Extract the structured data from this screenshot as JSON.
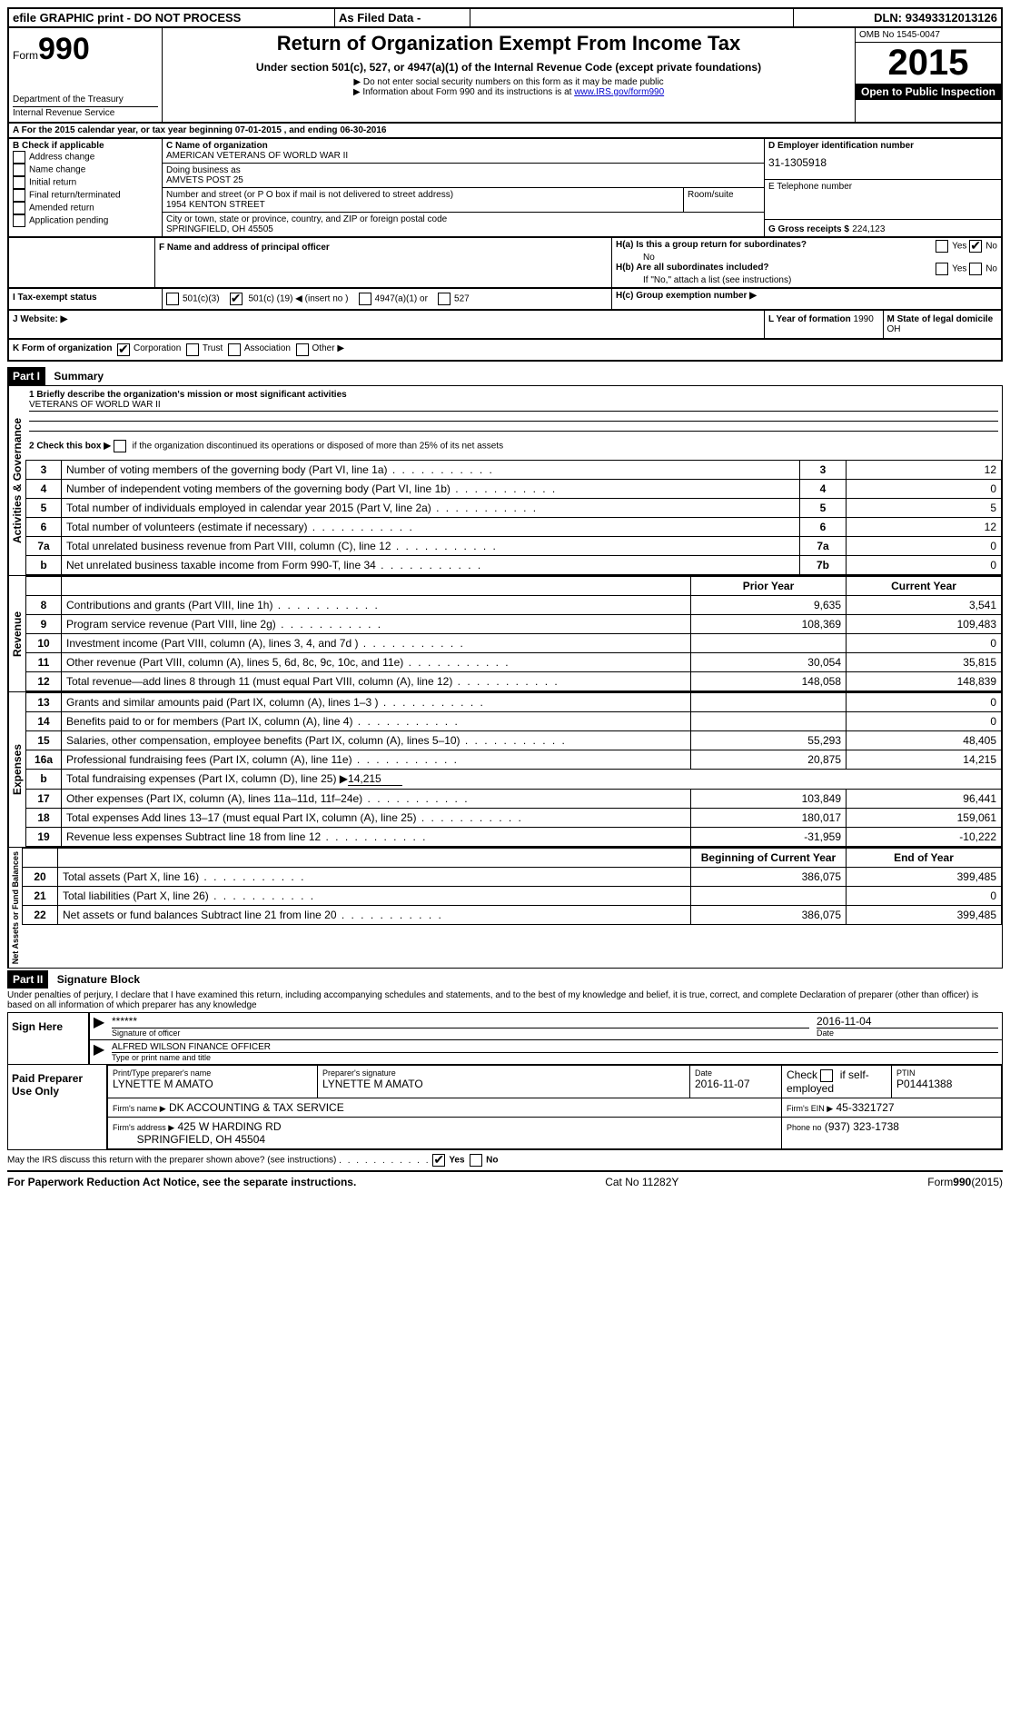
{
  "header_bar": {
    "efile": "efile GRAPHIC print - DO NOT PROCESS",
    "asfiled": "As Filed Data -",
    "dln_label": "DLN:",
    "dln": "93493312013126"
  },
  "top": {
    "form_prefix": "Form",
    "form_no": "990",
    "dept": "Department of the Treasury",
    "irs": "Internal Revenue Service",
    "title": "Return of Organization Exempt From Income Tax",
    "subtitle": "Under section 501(c), 527, or 4947(a)(1) of the Internal Revenue Code (except private foundations)",
    "note1": "▶ Do not enter social security numbers on this form as it may be made public",
    "note2_pre": "▶ Information about Form 990 and its instructions is at ",
    "note2_link": "www.IRS.gov/form990",
    "omb": "OMB No 1545-0047",
    "year": "2015",
    "open": "Open to Public Inspection"
  },
  "lineA": {
    "label": "A  For the 2015 calendar year, or tax year beginning 07-01-2015",
    "mid": ", and ending 06-30-2016"
  },
  "boxB": {
    "title": "B Check if applicable",
    "items": [
      "Address change",
      "Name change",
      "Initial return",
      "Final return/terminated",
      "Amended return",
      "Application pending"
    ]
  },
  "boxC": {
    "name_label": "C Name of organization",
    "name": "AMERICAN VETERANS OF WORLD WAR II",
    "dba_label": "Doing business as",
    "dba": "AMVETS POST 25",
    "street_label": "Number and street (or P O box if mail is not delivered to street address)",
    "room_label": "Room/suite",
    "street": "1954 KENTON STREET",
    "city_label": "City or town, state or province, country, and ZIP or foreign postal code",
    "city": "SPRINGFIELD, OH  45505"
  },
  "boxD": {
    "label": "D Employer identification number",
    "value": "31-1305918"
  },
  "boxE": {
    "label": "E Telephone number",
    "value": ""
  },
  "boxG": {
    "label": "G Gross receipts $",
    "value": "224,123"
  },
  "boxF": {
    "label": "F  Name and address of principal officer"
  },
  "boxH": {
    "ha_label": "H(a)  Is this a group return for subordinates?",
    "ha_no": "No",
    "yes": "Yes",
    "no": "No",
    "hb_label": "H(b)  Are all subordinates included?",
    "hb_note": "If \"No,\" attach a list  (see instructions)",
    "hc_label": "H(c)  Group exemption number ▶"
  },
  "boxI": {
    "label": "I  Tax-exempt status",
    "opt1": "501(c)(3)",
    "opt2_pre": "501(c) (",
    "opt2_num": "19",
    "opt2_post": ") ◀ (insert no )",
    "opt3": "4947(a)(1) or",
    "opt4": "527"
  },
  "boxJ": {
    "label": "J  Website: ▶"
  },
  "boxK": {
    "label": "K Form of organization",
    "opts": [
      "Corporation",
      "Trust",
      "Association",
      "Other ▶"
    ]
  },
  "boxL": {
    "label": "L Year of formation",
    "value": "1990"
  },
  "boxM": {
    "label": "M State of legal domicile",
    "value": "OH"
  },
  "part1": {
    "header": "Part I",
    "title": "Summary",
    "q1_label": "1 Briefly describe the organization's mission or most significant activities",
    "q1_value": "VETERANS OF WORLD WAR II",
    "q2": "2  Check this box ▶",
    "q2_post": "if the organization discontinued its operations or disposed of more than 25% of its net assets",
    "rows_simple": [
      {
        "n": "3",
        "label": "Number of voting members of the governing body (Part VI, line 1a)",
        "box": "3",
        "val": "12"
      },
      {
        "n": "4",
        "label": "Number of independent voting members of the governing body (Part VI, line 1b)",
        "box": "4",
        "val": "0"
      },
      {
        "n": "5",
        "label": "Total number of individuals employed in calendar year 2015 (Part V, line 2a)",
        "box": "5",
        "val": "5"
      },
      {
        "n": "6",
        "label": "Total number of volunteers (estimate if necessary)",
        "box": "6",
        "val": "12"
      },
      {
        "n": "7a",
        "label": "Total unrelated business revenue from Part VIII, column (C), line 12",
        "box": "7a",
        "val": "0"
      },
      {
        "n": "b",
        "label": "Net unrelated business taxable income from Form 990-T, line 34",
        "box": "7b",
        "val": "0"
      }
    ],
    "col_prior": "Prior Year",
    "col_current": "Current Year",
    "revenue_rows": [
      {
        "n": "8",
        "label": "Contributions and grants (Part VIII, line 1h)",
        "p": "9,635",
        "c": "3,541"
      },
      {
        "n": "9",
        "label": "Program service revenue (Part VIII, line 2g)",
        "p": "108,369",
        "c": "109,483"
      },
      {
        "n": "10",
        "label": "Investment income (Part VIII, column (A), lines 3, 4, and 7d )",
        "p": "",
        "c": "0"
      },
      {
        "n": "11",
        "label": "Other revenue (Part VIII, column (A), lines 5, 6d, 8c, 9c, 10c, and 11e)",
        "p": "30,054",
        "c": "35,815"
      },
      {
        "n": "12",
        "label": "Total revenue—add lines 8 through 11 (must equal Part VIII, column (A), line 12)",
        "p": "148,058",
        "c": "148,839"
      }
    ],
    "expense_rows": [
      {
        "n": "13",
        "label": "Grants and similar amounts paid (Part IX, column (A), lines 1–3 )",
        "p": "",
        "c": "0"
      },
      {
        "n": "14",
        "label": "Benefits paid to or for members (Part IX, column (A), line 4)",
        "p": "",
        "c": "0"
      },
      {
        "n": "15",
        "label": "Salaries, other compensation, employee benefits (Part IX, column (A), lines 5–10)",
        "p": "55,293",
        "c": "48,405"
      },
      {
        "n": "16a",
        "label": "Professional fundraising fees (Part IX, column (A), line 11e)",
        "p": "20,875",
        "c": "14,215"
      }
    ],
    "line_b": {
      "n": "b",
      "label": "Total fundraising expenses (Part IX, column (D), line 25) ▶",
      "val": "14,215"
    },
    "expense_rows2": [
      {
        "n": "17",
        "label": "Other expenses (Part IX, column (A), lines 11a–11d, 11f–24e)",
        "p": "103,849",
        "c": "96,441"
      },
      {
        "n": "18",
        "label": "Total expenses  Add lines 13–17 (must equal Part IX, column (A), line 25)",
        "p": "180,017",
        "c": "159,061"
      },
      {
        "n": "19",
        "label": "Revenue less expenses  Subtract line 18 from line 12",
        "p": "-31,959",
        "c": "-10,222"
      }
    ],
    "col_begin": "Beginning of Current Year",
    "col_end": "End of Year",
    "net_rows": [
      {
        "n": "20",
        "label": "Total assets (Part X, line 16)",
        "p": "386,075",
        "c": "399,485"
      },
      {
        "n": "21",
        "label": "Total liabilities (Part X, line 26)",
        "p": "",
        "c": "0"
      },
      {
        "n": "22",
        "label": "Net assets or fund balances  Subtract line 21 from line 20",
        "p": "386,075",
        "c": "399,485"
      }
    ],
    "side_gov": "Activities & Governance",
    "side_rev": "Revenue",
    "side_exp": "Expenses",
    "side_net": "Net Assets or Fund Balances"
  },
  "part2": {
    "header": "Part II",
    "title": "Signature Block",
    "declaration": "Under penalties of perjury, I declare that I have examined this return, including accompanying schedules and statements, and to the best of my knowledge and belief, it is true, correct, and complete  Declaration of preparer (other than officer) is based on all information of which preparer has any knowledge",
    "sign_here": "Sign Here",
    "sig_stars": "******",
    "sig_officer_label": "Signature of officer",
    "sig_date": "2016-11-04",
    "date_label": "Date",
    "officer_name": "ALFRED WILSON FINANCE OFFICER",
    "officer_name_label": "Type or print name and title",
    "paid": "Paid Preparer Use Only",
    "prep_name_label": "Print/Type preparer's name",
    "prep_name": "LYNETTE M AMATO",
    "prep_sig_label": "Preparer's signature",
    "prep_sig": "LYNETTE M AMATO",
    "prep_date_label": "Date",
    "prep_date": "2016-11-07",
    "self_emp": "Check        if self-employed",
    "ptin_label": "PTIN",
    "ptin": "P01441388",
    "firm_name_label": "Firm's name    ▶",
    "firm_name": "DK ACCOUNTING & TAX SERVICE",
    "firm_ein_label": "Firm's EIN ▶",
    "firm_ein": "45-3321727",
    "firm_addr_label": "Firm's address ▶",
    "firm_addr1": "425 W HARDING RD",
    "firm_addr2": "SPRINGFIELD, OH  45504",
    "phone_label": "Phone no",
    "phone": "(937) 323-1738",
    "may_irs": "May the IRS discuss this return with the preparer shown above? (see instructions)",
    "yes": "Yes",
    "no": "No"
  },
  "footer": {
    "left": "For Paperwork Reduction Act Notice, see the separate instructions.",
    "mid": "Cat No  11282Y",
    "right": "Form 990 (2015)"
  }
}
